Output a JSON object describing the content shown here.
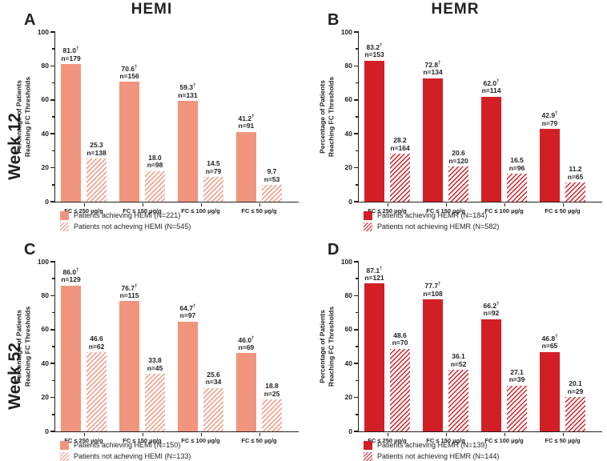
{
  "figure": {
    "column_titles": [
      "HEMI",
      "HEMR"
    ],
    "row_labels": [
      "Week 12",
      "Week 52"
    ],
    "dagger_symbol": "†"
  },
  "colors": {
    "hemi_solid": "#F2957E",
    "hemr_solid": "#D21F26",
    "axis": "#231F20",
    "background": "#FFFFFF"
  },
  "chart_data": [
    {
      "panel": "A",
      "row_label": "Week 12",
      "column_title": "HEMI",
      "type": "bar",
      "ylabel_line1": "Percentage of Patients",
      "ylabel_line2": "Reaching FC Thresholds",
      "ylim": [
        0,
        100
      ],
      "yticks": [
        0,
        20,
        40,
        60,
        80,
        100
      ],
      "minor_tick_step": 10,
      "grid": false,
      "legend_position": "bottom-left",
      "categories": [
        "FC ≤ 250 µg/g",
        "FC ≤ 150 µg/g",
        "FC ≤ 100 µg/g",
        "FC ≤ 50 µg/g"
      ],
      "color": "#F2957E",
      "series": [
        {
          "name": "Patients achieving HEMI (N=221)",
          "pattern": "solid",
          "dagger": true,
          "values": [
            "81.0",
            "70.6",
            "59.3",
            "41.2"
          ],
          "ns": [
            "n=179",
            "n=156",
            "n=131",
            "n=91"
          ]
        },
        {
          "name": "Patients not acheving HEMI (N=545)",
          "pattern": "hatched",
          "dagger": false,
          "values": [
            "25.3",
            "18.0",
            "14.5",
            "9.7"
          ],
          "ns": [
            "n=138",
            "n=98",
            "n=79",
            "n=53"
          ]
        }
      ]
    },
    {
      "panel": "B",
      "row_label": "Week 12",
      "column_title": "HEMR",
      "type": "bar",
      "ylabel_line1": "Percentage of Patients",
      "ylabel_line2": "Reaching FC Thresholds",
      "ylim": [
        0,
        100
      ],
      "yticks": [
        0,
        20,
        40,
        60,
        80,
        100
      ],
      "minor_tick_step": 10,
      "grid": false,
      "legend_position": "bottom-left",
      "categories": [
        "FC ≤ 250 µg/g",
        "FC ≤ 150 µg/g",
        "FC ≤ 100 µg/g",
        "FC ≤ 50 µg/g"
      ],
      "color": "#D21F26",
      "series": [
        {
          "name": "Patients achieving HEMR (N=184)",
          "pattern": "solid",
          "dagger": true,
          "values": [
            "83.2",
            "72.8",
            "62.0",
            "42.9"
          ],
          "ns": [
            "n=153",
            "n=134",
            "n=114",
            "n=79"
          ]
        },
        {
          "name": "Patients not achieving HEMR (N=582)",
          "pattern": "hatched",
          "dagger": false,
          "values": [
            "28.2",
            "20.6",
            "16.5",
            "11.2"
          ],
          "ns": [
            "n=164",
            "n=120",
            "n=96",
            "n=65"
          ]
        }
      ]
    },
    {
      "panel": "C",
      "row_label": "Week 52",
      "column_title": "HEMI",
      "type": "bar",
      "ylabel_line1": "Percentage of Patients",
      "ylabel_line2": "Reaching FC Thresholds",
      "ylim": [
        0,
        100
      ],
      "yticks": [
        0,
        20,
        40,
        60,
        80,
        100
      ],
      "minor_tick_step": 10,
      "grid": false,
      "legend_position": "bottom-left",
      "categories": [
        "FC ≤ 250 µg/g",
        "FC ≤ 150 µg/g",
        "FC ≤ 100 µg/g",
        "FC ≤ 50 µg/g"
      ],
      "color": "#F2957E",
      "series": [
        {
          "name": "Patients achieving HEMI (N=150)",
          "pattern": "solid",
          "dagger": true,
          "values": [
            "86.0",
            "76.7",
            "64.7",
            "46.0"
          ],
          "ns": [
            "n=129",
            "n=115",
            "n=97",
            "n=69"
          ]
        },
        {
          "name": "Patients not acheving HEMI (N=133)",
          "pattern": "hatched",
          "dagger": false,
          "values": [
            "46.6",
            "33.8",
            "25.6",
            "18.8"
          ],
          "ns": [
            "n=62",
            "n=45",
            "n=34",
            "n=25"
          ]
        }
      ]
    },
    {
      "panel": "D",
      "row_label": "Week 52",
      "column_title": "HEMR",
      "type": "bar",
      "ylabel_line1": "Percentage of Patients",
      "ylabel_line2": "Reaching FC Thresholds",
      "ylim": [
        0,
        100
      ],
      "yticks": [
        0,
        20,
        40,
        60,
        80,
        100
      ],
      "minor_tick_step": 10,
      "grid": false,
      "legend_position": "bottom-left",
      "categories": [
        "FC ≤ 250 µg/g",
        "FC ≤ 150 µg/g",
        "FC ≤ 100 µg/g",
        "FC ≤ 50 µg/g"
      ],
      "color": "#D21F26",
      "series": [
        {
          "name": "Patients achieving HEMR (N=139)",
          "pattern": "solid",
          "dagger": true,
          "values": [
            "87.1",
            "77.7",
            "66.2",
            "46.8"
          ],
          "ns": [
            "n=121",
            "n=108",
            "n=92",
            "n=65"
          ]
        },
        {
          "name": "Patients not achieving HEMR (N=144)",
          "pattern": "hatched",
          "dagger": false,
          "values": [
            "48.6",
            "36.1",
            "27.1",
            "20.1"
          ],
          "ns": [
            "n=70",
            "n=52",
            "n=39",
            "n=29"
          ]
        }
      ]
    }
  ]
}
